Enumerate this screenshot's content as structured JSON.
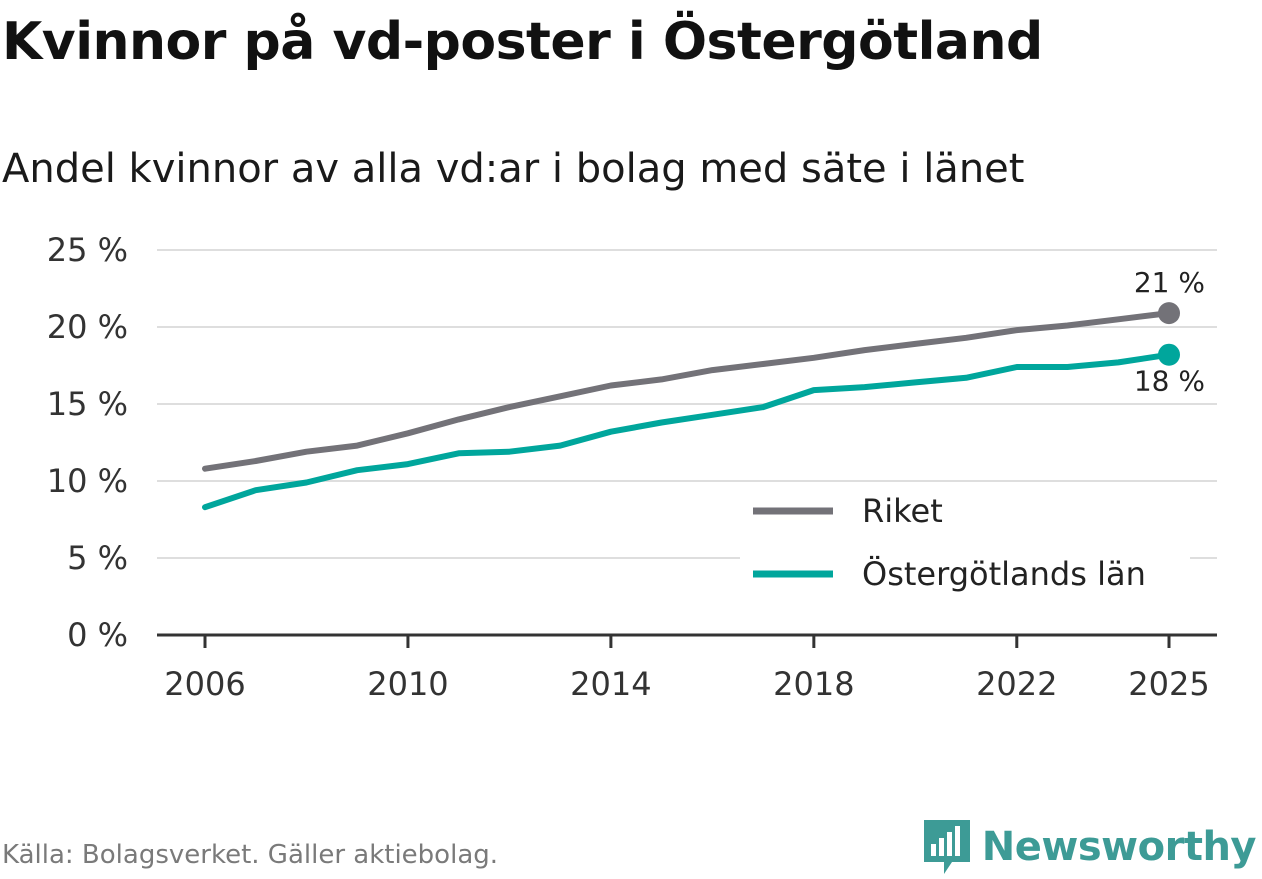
{
  "title": "Kvinnor på vd-poster i Östergötland",
  "subtitle": "Andel kvinnor av alla vd:ar i bolag med säte i länet",
  "source": "Källa: Bolagsverket. Gäller aktiebolag.",
  "brand": "Newsworthy",
  "colors": {
    "riket": "#737278",
    "ostergotland": "#00a69c",
    "grid": "#dedede",
    "axis": "#333333",
    "brand": "#3d9b96"
  },
  "chart_data": {
    "type": "line",
    "title": "Kvinnor på vd-poster i Östergötland",
    "subtitle": "Andel kvinnor av alla vd:ar i bolag med säte i länet",
    "xlabel": "",
    "ylabel": "",
    "x": [
      2006,
      2007,
      2008,
      2009,
      2010,
      2011,
      2012,
      2013,
      2014,
      2015,
      2016,
      2017,
      2018,
      2019,
      2020,
      2021,
      2022,
      2023,
      2024,
      2025
    ],
    "x_ticks": [
      "2006",
      "2010",
      "2014",
      "2018",
      "2022",
      "2025"
    ],
    "y_ticks": [
      "0 %",
      "5 %",
      "10 %",
      "15 %",
      "20 %",
      "25 %"
    ],
    "ylim": [
      0,
      25
    ],
    "grid": true,
    "legend_position": "bottom-right",
    "series": [
      {
        "name": "Riket",
        "color": "#737278",
        "end_label": "21 %",
        "values": [
          10.8,
          11.3,
          11.9,
          12.3,
          13.1,
          14.0,
          14.8,
          15.5,
          16.2,
          16.6,
          17.2,
          17.6,
          18.0,
          18.5,
          18.9,
          19.3,
          19.8,
          20.1,
          20.5,
          20.9
        ]
      },
      {
        "name": "Östergötlands län",
        "color": "#00a69c",
        "end_label": "18 %",
        "values": [
          8.3,
          9.4,
          9.9,
          10.7,
          11.1,
          11.8,
          11.9,
          12.3,
          13.2,
          13.8,
          14.3,
          14.8,
          15.9,
          16.1,
          16.4,
          16.7,
          17.4,
          17.4,
          17.7,
          18.2
        ]
      }
    ]
  }
}
